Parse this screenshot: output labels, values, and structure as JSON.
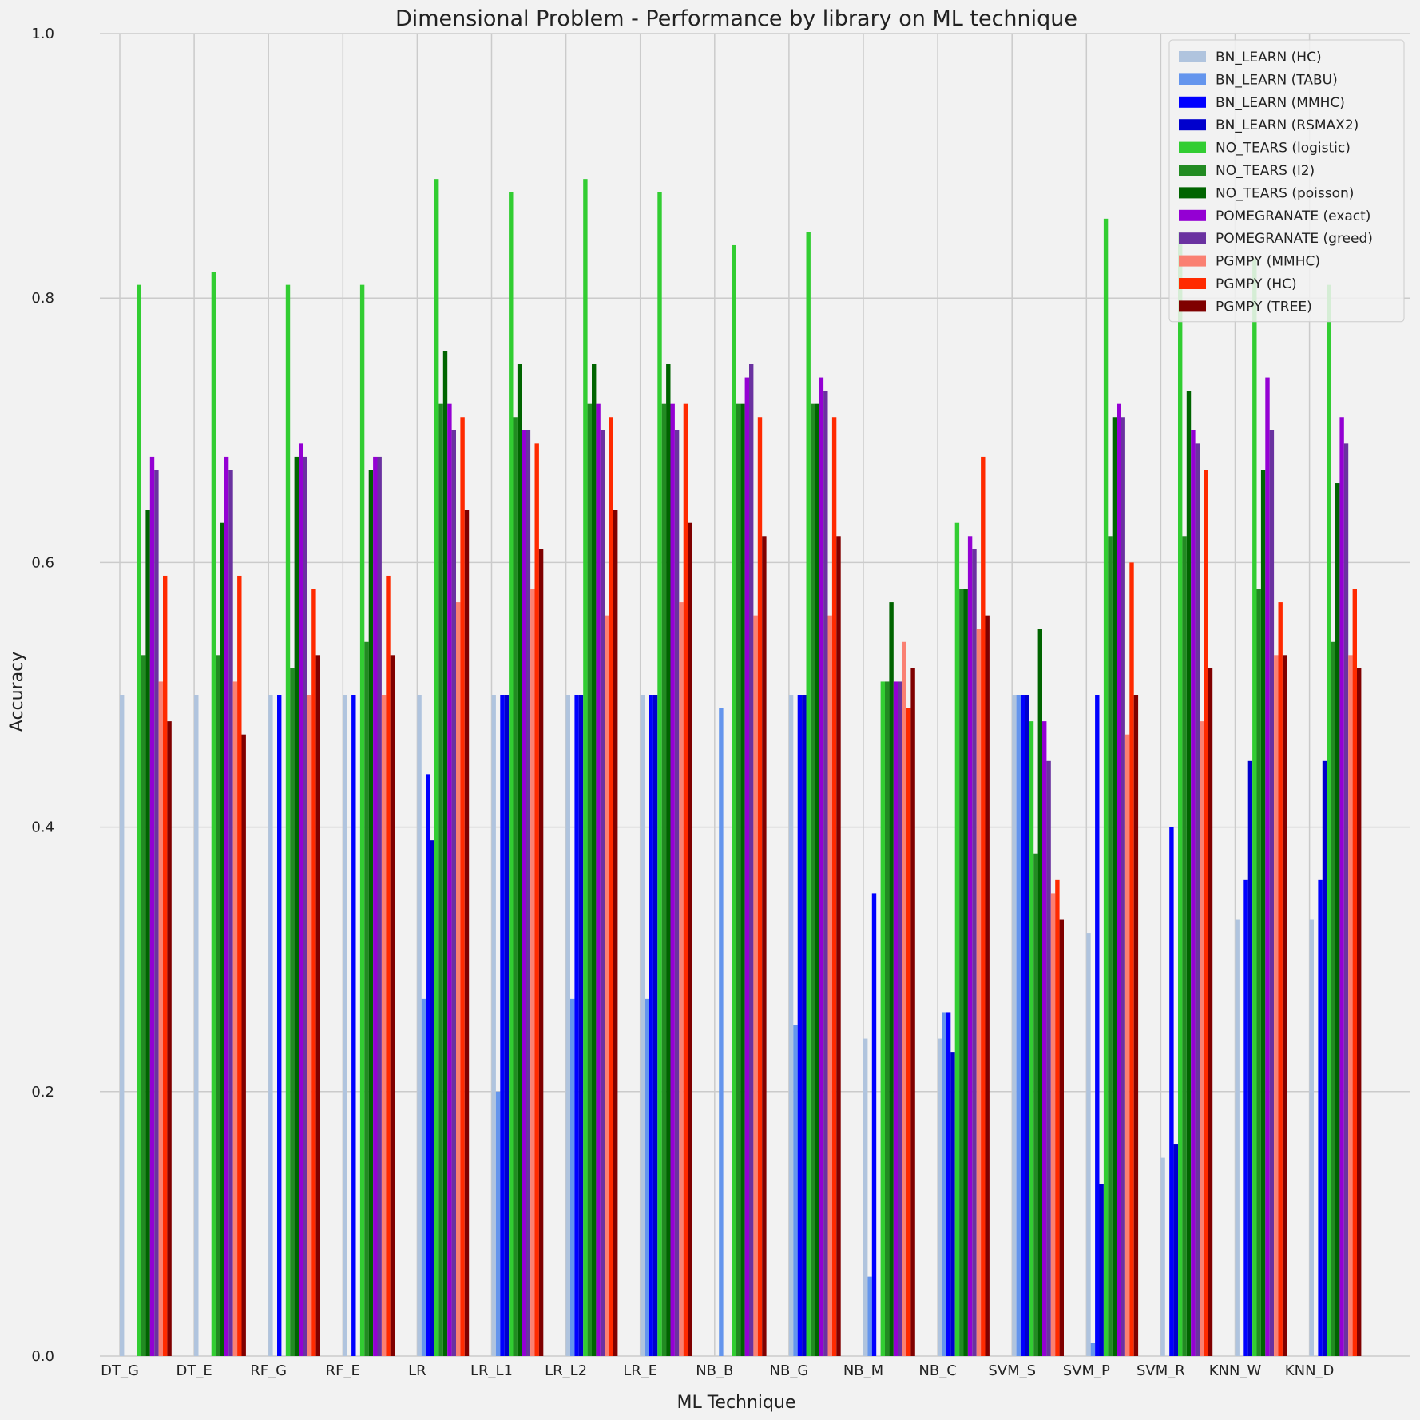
{
  "chart_data": {
    "type": "bar",
    "title": "Dimensional Problem - Performance by library on ML technique",
    "xlabel": "ML Technique",
    "ylabel": "Accuracy",
    "ylim": [
      0,
      1
    ],
    "yticks": [
      "0.0",
      "0.2",
      "0.4",
      "0.6",
      "0.8",
      "1.0"
    ],
    "grid": true,
    "legend_position": "top-right",
    "categories": [
      "DT_G",
      "DT_E",
      "RF_G",
      "RF_E",
      "LR",
      "LR_L1",
      "LR_L2",
      "LR_E",
      "NB_B",
      "NB_G",
      "NB_M",
      "NB_C",
      "SVM_S",
      "SVM_P",
      "SVM_R",
      "KNN_W",
      "KNN_D"
    ],
    "series": [
      {
        "name": "BN_LEARN (HC)",
        "color": "#b0c4de",
        "values": [
          0.5,
          0.5,
          0.5,
          0.5,
          0.5,
          0.5,
          0.5,
          0.5,
          0.0,
          0.5,
          0.24,
          0.24,
          0.5,
          0.32,
          0.15,
          0.33,
          0.33
        ]
      },
      {
        "name": "BN_LEARN (TABU)",
        "color": "#6495ed",
        "values": [
          0.0,
          0.0,
          0.0,
          0.0,
          0.27,
          0.2,
          0.27,
          0.27,
          0.49,
          0.25,
          0.06,
          0.26,
          0.5,
          0.01,
          0.0,
          0.0,
          0.0
        ]
      },
      {
        "name": "BN_LEARN (MMHC)",
        "color": "#0000ff",
        "values": [
          0.0,
          0.0,
          0.5,
          0.5,
          0.44,
          0.5,
          0.5,
          0.5,
          0.0,
          0.5,
          0.35,
          0.26,
          0.5,
          0.5,
          0.4,
          0.36,
          0.36
        ]
      },
      {
        "name": "BN_LEARN (RSMAX2)",
        "color": "#0000cd",
        "values": [
          0.0,
          0.0,
          0.0,
          0.0,
          0.39,
          0.5,
          0.5,
          0.5,
          0.0,
          0.5,
          0.0,
          0.23,
          0.5,
          0.13,
          0.16,
          0.45,
          0.45
        ]
      },
      {
        "name": "NO_TEARS (logistic)",
        "color": "#32cd32",
        "values": [
          0.81,
          0.82,
          0.81,
          0.81,
          0.89,
          0.88,
          0.89,
          0.88,
          0.84,
          0.85,
          0.51,
          0.63,
          0.48,
          0.86,
          0.85,
          0.83,
          0.81
        ]
      },
      {
        "name": "NO_TEARS (l2)",
        "color": "#228b22",
        "values": [
          0.53,
          0.53,
          0.52,
          0.54,
          0.72,
          0.71,
          0.72,
          0.72,
          0.72,
          0.72,
          0.51,
          0.58,
          0.38,
          0.62,
          0.62,
          0.58,
          0.54
        ]
      },
      {
        "name": "NO_TEARS (poisson)",
        "color": "#006400",
        "values": [
          0.64,
          0.63,
          0.68,
          0.67,
          0.76,
          0.75,
          0.75,
          0.75,
          0.72,
          0.72,
          0.57,
          0.58,
          0.55,
          0.71,
          0.73,
          0.67,
          0.66
        ]
      },
      {
        "name": "POMEGRANATE (exact)",
        "color": "#9400d3",
        "values": [
          0.68,
          0.68,
          0.69,
          0.68,
          0.72,
          0.7,
          0.72,
          0.72,
          0.74,
          0.74,
          0.51,
          0.62,
          0.48,
          0.72,
          0.7,
          0.74,
          0.71
        ]
      },
      {
        "name": "POMEGRANATE (greed)",
        "color": "#6a32a0",
        "values": [
          0.67,
          0.67,
          0.68,
          0.68,
          0.7,
          0.7,
          0.7,
          0.7,
          0.75,
          0.73,
          0.51,
          0.61,
          0.45,
          0.71,
          0.69,
          0.7,
          0.69
        ]
      },
      {
        "name": "PGMPY (MMHC)",
        "color": "#fa8072",
        "values": [
          0.51,
          0.51,
          0.5,
          0.5,
          0.57,
          0.58,
          0.56,
          0.57,
          0.56,
          0.56,
          0.54,
          0.55,
          0.35,
          0.47,
          0.48,
          0.53,
          0.53
        ]
      },
      {
        "name": "PGMPY (HC)",
        "color": "#ff2a00",
        "values": [
          0.59,
          0.59,
          0.58,
          0.59,
          0.71,
          0.69,
          0.71,
          0.72,
          0.71,
          0.71,
          0.49,
          0.68,
          0.36,
          0.6,
          0.67,
          0.57,
          0.58
        ]
      },
      {
        "name": "PGMPY (TREE)",
        "color": "#7f0000",
        "values": [
          0.48,
          0.47,
          0.53,
          0.53,
          0.64,
          0.61,
          0.64,
          0.63,
          0.62,
          0.62,
          0.52,
          0.56,
          0.33,
          0.5,
          0.52,
          0.53,
          0.52
        ]
      }
    ]
  }
}
